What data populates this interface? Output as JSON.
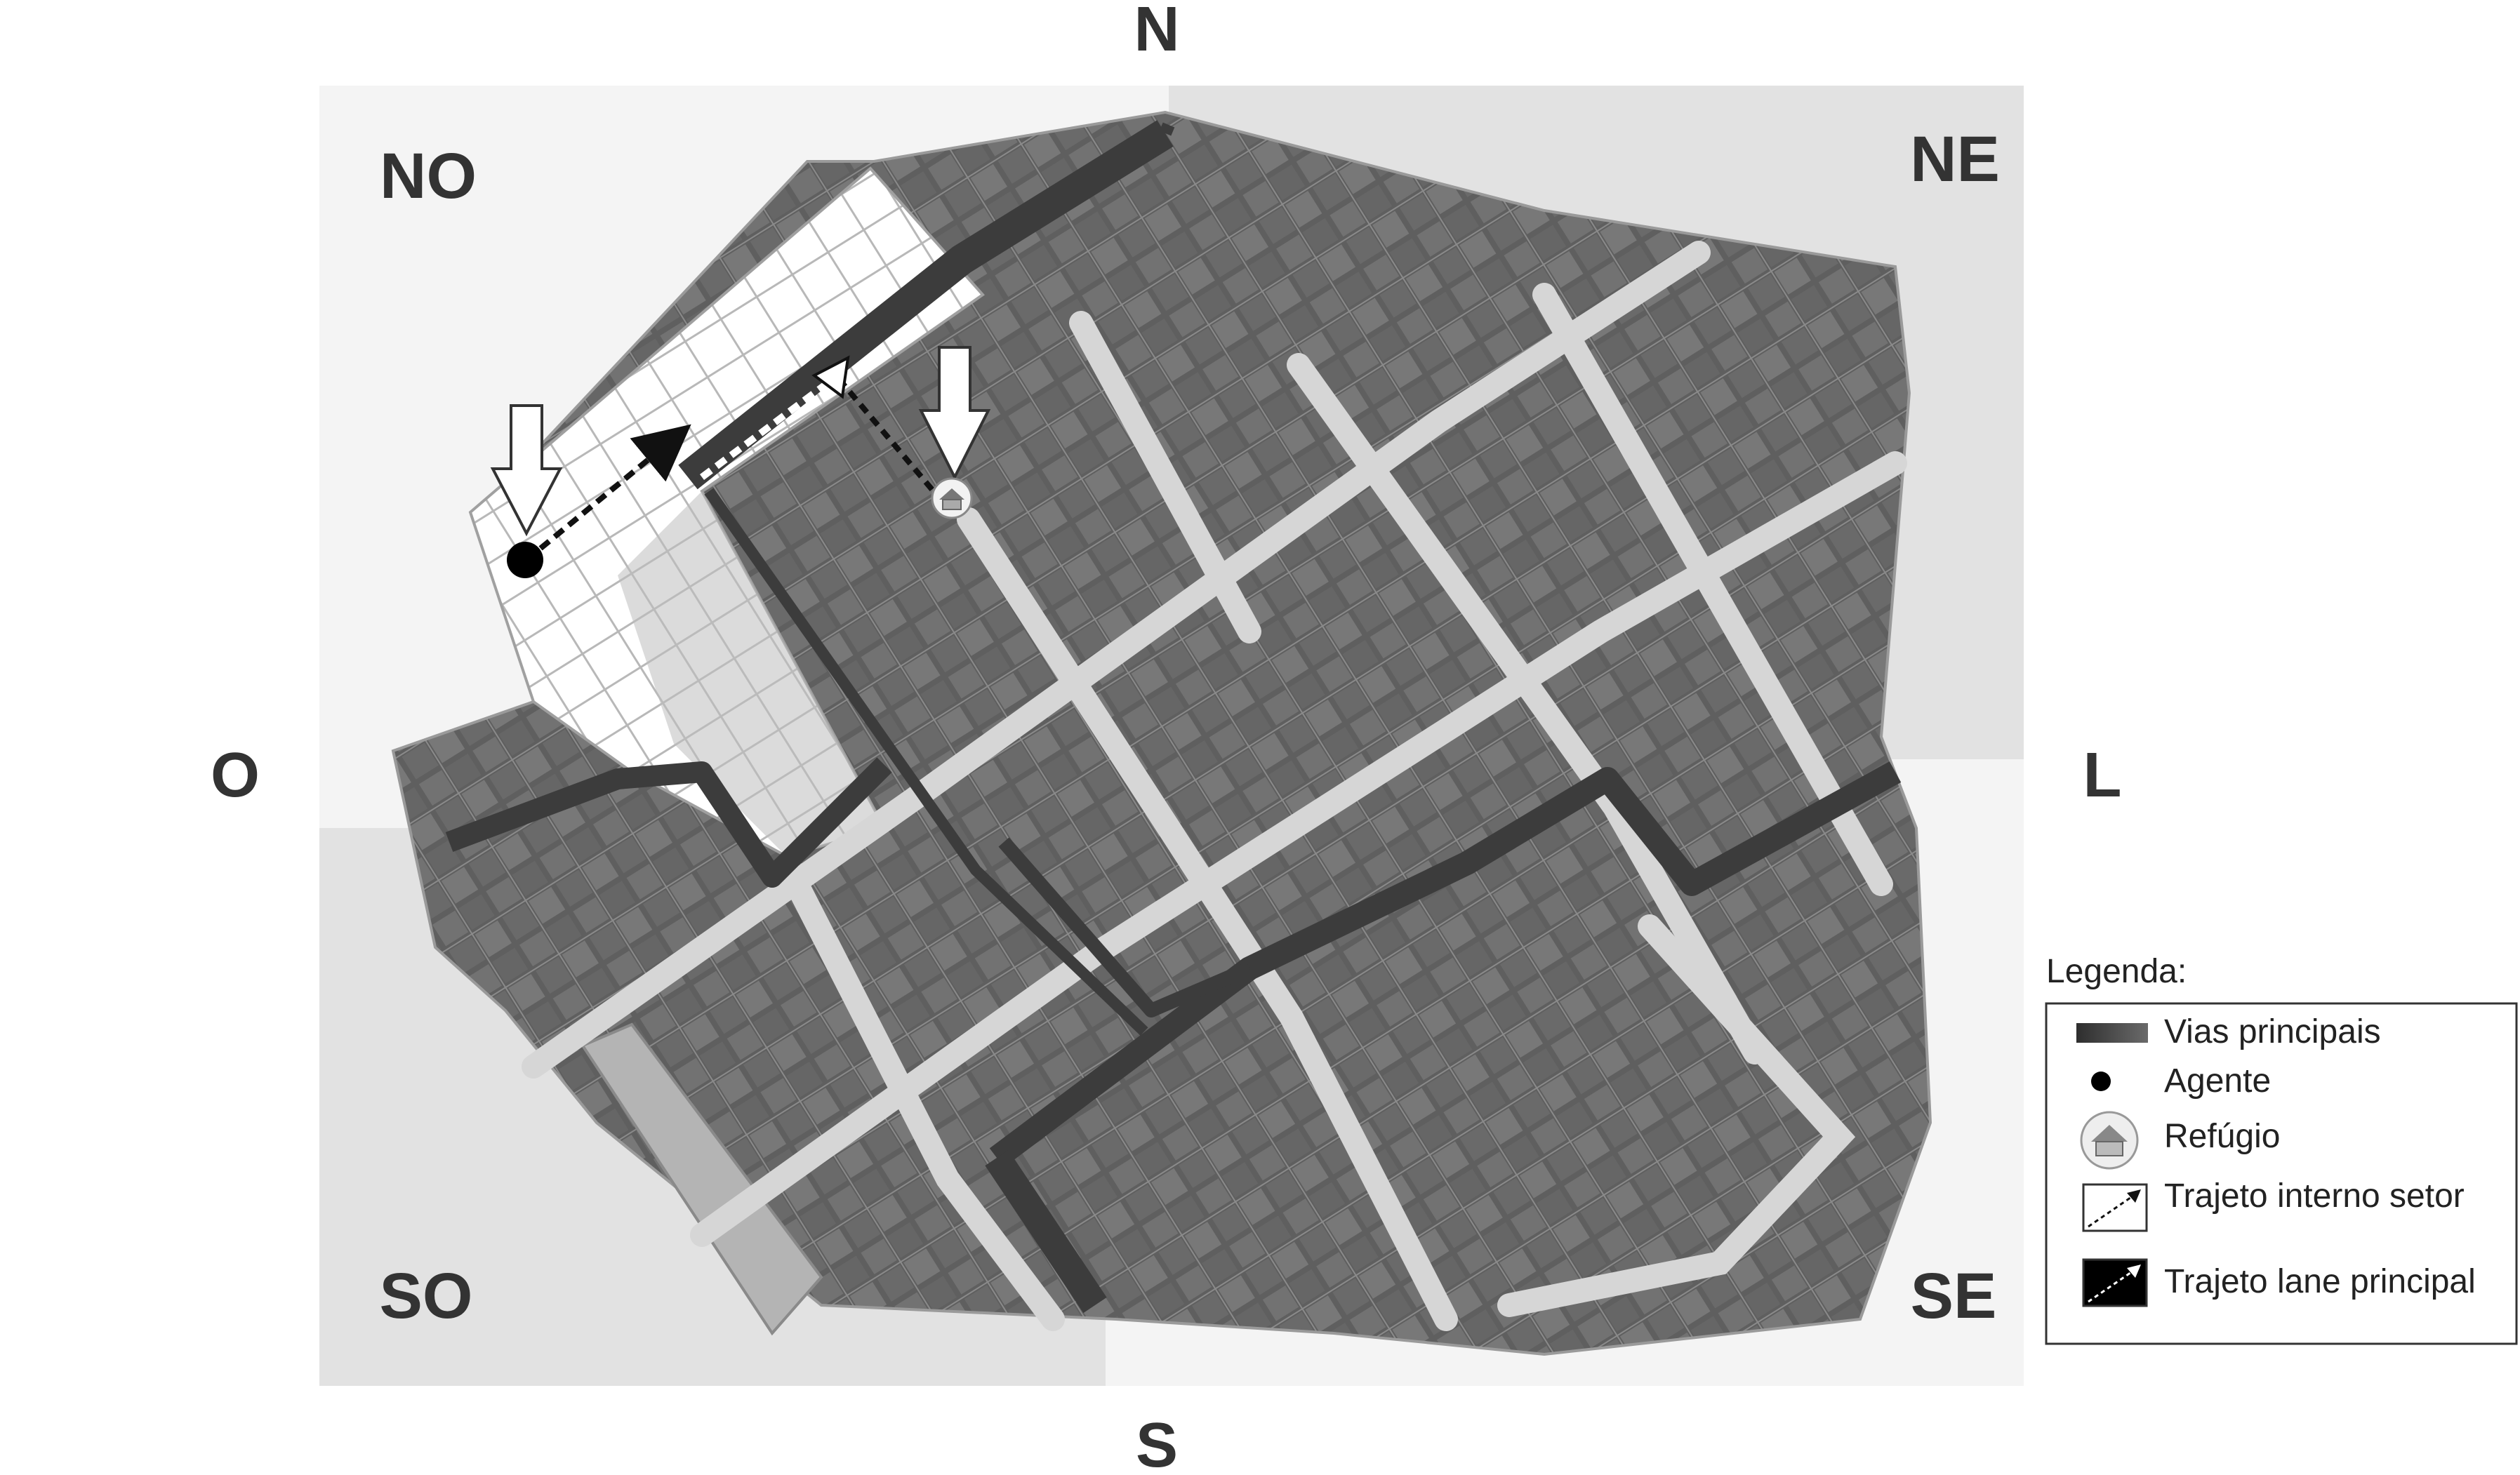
{
  "compass": {
    "north": "N",
    "south": "S",
    "west": "O",
    "east": "L"
  },
  "quadrants": {
    "nw": "NO",
    "ne": "NE",
    "sw": "SO",
    "se": "SE"
  },
  "legend": {
    "title": "Legenda:",
    "items": [
      {
        "symbol": "main-road-swatch",
        "label": "Vias principais"
      },
      {
        "symbol": "agent-dot",
        "label": "Agente"
      },
      {
        "symbol": "shelter-icon",
        "label": "Refúgio"
      },
      {
        "symbol": "dotted-arrow",
        "label": "Trajeto interno setor"
      },
      {
        "symbol": "filled-arrow",
        "label": "Trajeto lane principal"
      }
    ]
  },
  "colors": {
    "quadrant_light": "#f4f4f4",
    "quadrant_dark": "#e2e2e2",
    "buildings": "#6e6e6e",
    "streets": "#d8d8d8",
    "main_roads": "#3a3a3a"
  }
}
